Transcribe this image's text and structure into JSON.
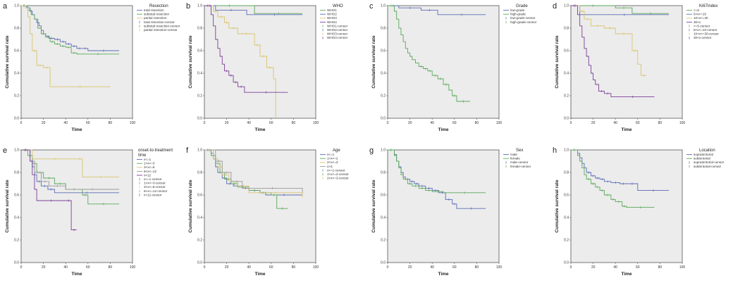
{
  "figure": {
    "description_free": true
  },
  "colors": {
    "blue": "#5b6bb5",
    "green": "#5aa85a",
    "tan": "#d9c36e",
    "purple": "#7b3f98",
    "gray": "#999999",
    "background": "#ececec"
  },
  "chart_data": [
    {
      "letter": "a",
      "type": "line",
      "title": "",
      "xlabel": "Time",
      "ylabel": "Cumulative survival rate",
      "xlim": [
        0,
        100
      ],
      "ylim": [
        0,
        1
      ],
      "xticks": [
        "0",
        "20",
        "40",
        "60",
        "80",
        "100"
      ],
      "yticks": [
        "0.0",
        "0.2",
        "0.4",
        "0.6",
        "0.8",
        "1.0"
      ],
      "legend_title": "Resection",
      "legend": [
        "total resection",
        "subtotal resection",
        "partial resection",
        "total resection-censor",
        "subtotal resection-censor",
        "partial resection-censor"
      ],
      "series": [
        {
          "name": "total resection",
          "color": "blue",
          "x": [
            0,
            5,
            8,
            10,
            12,
            14,
            16,
            18,
            20,
            22,
            25,
            30,
            35,
            40,
            45,
            50,
            55,
            60,
            88
          ],
          "y": [
            1,
            0.98,
            0.95,
            0.92,
            0.88,
            0.85,
            0.82,
            0.78,
            0.75,
            0.73,
            0.71,
            0.7,
            0.68,
            0.66,
            0.64,
            0.62,
            0.62,
            0.6,
            0.6
          ]
        },
        {
          "name": "subtotal resection",
          "color": "green",
          "x": [
            0,
            6,
            9,
            12,
            15,
            18,
            22,
            26,
            30,
            35,
            40,
            45,
            50,
            88
          ],
          "y": [
            1,
            0.96,
            0.92,
            0.88,
            0.8,
            0.75,
            0.72,
            0.68,
            0.66,
            0.64,
            0.63,
            0.58,
            0.57,
            0.57
          ]
        },
        {
          "name": "partial resection",
          "color": "tan",
          "x": [
            0,
            4,
            6,
            8,
            10,
            14,
            20,
            26,
            80
          ],
          "y": [
            1,
            0.98,
            0.9,
            0.75,
            0.6,
            0.47,
            0.45,
            0.28,
            0.28
          ]
        }
      ]
    },
    {
      "letter": "b",
      "type": "line",
      "title": "",
      "xlabel": "Time",
      "ylabel": "Cumulative survival rate",
      "xlim": [
        0,
        100
      ],
      "ylim": [
        0,
        1
      ],
      "xticks": [
        "0",
        "20",
        "40",
        "60",
        "80",
        "100"
      ],
      "yticks": [
        "0.0",
        "0.2",
        "0.4",
        "0.6",
        "0.8",
        "1.0"
      ],
      "legend_title": "WHO",
      "legend": [
        "WHO1",
        "WHO2",
        "WHO3",
        "WHO4",
        "WHO1-censor",
        "WHO2-censor",
        "WHO3-censor",
        "WHO4-censor"
      ],
      "series": [
        {
          "name": "WHO1",
          "color": "green",
          "x": [
            0,
            45,
            88
          ],
          "y": [
            1,
            0.93,
            0.93
          ]
        },
        {
          "name": "WHO2",
          "color": "blue",
          "x": [
            0,
            10,
            38,
            88
          ],
          "y": [
            1,
            0.96,
            0.92,
            0.92
          ]
        },
        {
          "name": "WHO3",
          "color": "tan",
          "x": [
            0,
            8,
            12,
            18,
            22,
            30,
            45,
            50,
            56,
            62,
            64
          ],
          "y": [
            1,
            0.95,
            0.9,
            0.85,
            0.8,
            0.75,
            0.65,
            0.55,
            0.45,
            0.35,
            0.0
          ]
        },
        {
          "name": "WHO4",
          "color": "purple",
          "x": [
            0,
            6,
            8,
            10,
            12,
            14,
            16,
            18,
            22,
            26,
            30,
            36,
            75
          ],
          "y": [
            1,
            0.92,
            0.82,
            0.7,
            0.62,
            0.55,
            0.48,
            0.42,
            0.38,
            0.32,
            0.28,
            0.23,
            0.23
          ]
        }
      ]
    },
    {
      "letter": "c",
      "type": "line",
      "title": "",
      "xlabel": "Time",
      "ylabel": "Cumulative survival rate",
      "xlim": [
        0,
        100
      ],
      "ylim": [
        0,
        1
      ],
      "xticks": [
        "0",
        "20",
        "40",
        "60",
        "80",
        "100"
      ],
      "yticks": [
        "0.0",
        "0.2",
        "0.4",
        "0.6",
        "0.8",
        "1.0"
      ],
      "legend_title": "Grade",
      "legend": [
        "low-grade",
        "high-grade",
        "low-grade-censor",
        "high-grade-censor"
      ],
      "series": [
        {
          "name": "low-grade",
          "color": "blue",
          "x": [
            0,
            10,
            30,
            45,
            88
          ],
          "y": [
            1,
            0.98,
            0.96,
            0.92,
            0.92
          ]
        },
        {
          "name": "high-grade",
          "color": "green",
          "x": [
            0,
            6,
            8,
            10,
            12,
            14,
            16,
            18,
            20,
            22,
            25,
            28,
            32,
            36,
            40,
            45,
            50,
            55,
            58,
            62,
            74
          ],
          "y": [
            1,
            0.95,
            0.88,
            0.8,
            0.74,
            0.68,
            0.62,
            0.58,
            0.55,
            0.52,
            0.49,
            0.46,
            0.44,
            0.42,
            0.38,
            0.35,
            0.3,
            0.25,
            0.2,
            0.15,
            0.15
          ]
        }
      ]
    },
    {
      "letter": "d",
      "type": "line",
      "title": "",
      "xlabel": "Time",
      "ylabel": "Cumulative survival rate",
      "xlim": [
        0,
        100
      ],
      "ylim": [
        0,
        1
      ],
      "xticks": [
        "0",
        "20",
        "40",
        "60",
        "80",
        "100"
      ],
      "yticks": [
        "0.0",
        "0.2",
        "0.4",
        "0.6",
        "0.8",
        "1.0"
      ],
      "legend_title": "Ki67index",
      "legend": [
        "<=5",
        "5<x<=10",
        "10<x<=30",
        "30<x",
        "<=5-censor",
        "5<x<=10-censor",
        "10<x<=30-censor",
        "30<x-censor"
      ],
      "series": [
        {
          "name": "<=5",
          "color": "green",
          "x": [
            0,
            40,
            55,
            88
          ],
          "y": [
            1,
            0.98,
            0.93,
            0.93
          ]
        },
        {
          "name": "5<x<=10",
          "color": "blue",
          "x": [
            0,
            8,
            88
          ],
          "y": [
            1,
            0.92,
            0.92
          ]
        },
        {
          "name": "10<x<=30",
          "color": "tan",
          "x": [
            0,
            8,
            12,
            18,
            30,
            40,
            55,
            60,
            63,
            68
          ],
          "y": [
            1,
            0.95,
            0.88,
            0.82,
            0.8,
            0.75,
            0.6,
            0.48,
            0.38,
            0.38
          ]
        },
        {
          "name": "30<x",
          "color": "purple",
          "x": [
            0,
            6,
            8,
            10,
            12,
            14,
            16,
            18,
            20,
            22,
            25,
            30,
            36,
            75
          ],
          "y": [
            1,
            0.92,
            0.82,
            0.72,
            0.62,
            0.55,
            0.47,
            0.4,
            0.34,
            0.3,
            0.24,
            0.22,
            0.19,
            0.19
          ]
        }
      ]
    },
    {
      "letter": "e",
      "type": "line",
      "title": "",
      "xlabel": "Time",
      "ylabel": "Cumulative survival rate",
      "xlim": [
        0,
        100
      ],
      "ylim": [
        0,
        1
      ],
      "xticks": [
        "0",
        "20",
        "40",
        "60",
        "80",
        "100"
      ],
      "yticks": [
        "0.0",
        "0.2",
        "0.4",
        "0.6",
        "0.8",
        "1.0"
      ],
      "legend_title": "onset-to-treatment time",
      "legend": [
        "x<=1",
        "1<x<=3",
        "3<x<=6",
        "6<x<=12",
        "x>12",
        "x<=1-censor",
        "1<x<=3-censor",
        "3<x<=6-censor",
        "6<x<=12-censor",
        "x>12-censor"
      ],
      "series": [
        {
          "name": "x<=1",
          "color": "blue",
          "x": [
            0,
            8,
            10,
            12,
            14,
            18,
            24,
            30,
            88
          ],
          "y": [
            1,
            0.95,
            0.85,
            0.78,
            0.72,
            0.68,
            0.65,
            0.62,
            0.62
          ]
        },
        {
          "name": "1<x<=3",
          "color": "green",
          "x": [
            0,
            6,
            10,
            14,
            20,
            30,
            40,
            55,
            60,
            88
          ],
          "y": [
            1,
            0.95,
            0.88,
            0.8,
            0.75,
            0.7,
            0.65,
            0.6,
            0.52,
            0.52
          ]
        },
        {
          "name": "3<x<=6",
          "color": "tan",
          "x": [
            0,
            10,
            50,
            55,
            88
          ],
          "y": [
            1,
            0.92,
            0.92,
            0.76,
            0.76
          ]
        },
        {
          "name": "6<x<=12",
          "color": "gray",
          "x": [
            0,
            8,
            12,
            18,
            25,
            40,
            88
          ],
          "y": [
            1,
            0.9,
            0.8,
            0.72,
            0.68,
            0.65,
            0.65
          ]
        },
        {
          "name": "x>12",
          "color": "purple",
          "x": [
            0,
            8,
            10,
            12,
            14,
            40,
            45,
            50
          ],
          "y": [
            1,
            0.9,
            0.78,
            0.65,
            0.55,
            0.55,
            0.29,
            0.29
          ]
        }
      ]
    },
    {
      "letter": "f",
      "type": "line",
      "title": "",
      "xlabel": "Time",
      "ylabel": "Cumulative survival rate",
      "xlim": [
        0,
        100
      ],
      "ylim": [
        0,
        1
      ],
      "xticks": [
        "0",
        "20",
        "40",
        "60",
        "80",
        "100"
      ],
      "yticks": [
        "0.0",
        "0.2",
        "0.4",
        "0.6",
        "0.8",
        "1.0"
      ],
      "legend_title": "Age",
      "legend": [
        "x<=1",
        "1<x<=2",
        "2<x<=3",
        "x>3",
        "x<=1-censor",
        "1<x<=2-censor",
        "2<x<=3-censor"
      ],
      "series": [
        {
          "name": "x<=1",
          "color": "blue",
          "x": [
            0,
            6,
            8,
            10,
            12,
            16,
            20,
            26,
            34,
            40,
            50,
            55,
            88
          ],
          "y": [
            1,
            0.97,
            0.92,
            0.85,
            0.8,
            0.75,
            0.7,
            0.68,
            0.66,
            0.64,
            0.62,
            0.6,
            0.6
          ]
        },
        {
          "name": "1<x<=2",
          "color": "green",
          "x": [
            0,
            6,
            10,
            14,
            18,
            24,
            30,
            40,
            50,
            60,
            65,
            75
          ],
          "y": [
            1,
            0.95,
            0.88,
            0.8,
            0.74,
            0.7,
            0.67,
            0.64,
            0.62,
            0.6,
            0.48,
            0.48
          ]
        },
        {
          "name": "2<x<=3",
          "color": "tan",
          "x": [
            0,
            8,
            12,
            16,
            22,
            30,
            40,
            88
          ],
          "y": [
            1,
            0.92,
            0.85,
            0.78,
            0.72,
            0.68,
            0.62,
            0.58
          ]
        },
        {
          "name": "x>3",
          "color": "gray",
          "x": [
            0,
            10,
            16,
            24,
            34,
            88
          ],
          "y": [
            1,
            0.9,
            0.8,
            0.72,
            0.66,
            0.62
          ]
        }
      ]
    },
    {
      "letter": "g",
      "type": "line",
      "title": "",
      "xlabel": "Time",
      "ylabel": "Cumulative survival rate",
      "xlim": [
        0,
        100
      ],
      "ylim": [
        0,
        1
      ],
      "xticks": [
        "0",
        "20",
        "40",
        "60",
        "80",
        "100"
      ],
      "yticks": [
        "0.0",
        "0.2",
        "0.4",
        "0.6",
        "0.8",
        "1.0"
      ],
      "legend_title": "Sex",
      "legend": [
        "male",
        "female",
        "male-censor",
        "female-censor"
      ],
      "series": [
        {
          "name": "male",
          "color": "blue",
          "x": [
            0,
            6,
            8,
            10,
            12,
            14,
            16,
            20,
            24,
            28,
            34,
            40,
            46,
            52,
            58,
            62,
            88
          ],
          "y": [
            1,
            0.96,
            0.9,
            0.85,
            0.8,
            0.76,
            0.74,
            0.72,
            0.7,
            0.68,
            0.66,
            0.64,
            0.62,
            0.56,
            0.52,
            0.48,
            0.48
          ]
        },
        {
          "name": "female",
          "color": "green",
          "x": [
            0,
            6,
            8,
            10,
            12,
            14,
            18,
            22,
            28,
            34,
            40,
            50,
            88
          ],
          "y": [
            1,
            0.95,
            0.9,
            0.84,
            0.78,
            0.74,
            0.7,
            0.68,
            0.66,
            0.64,
            0.63,
            0.62,
            0.62
          ]
        }
      ]
    },
    {
      "letter": "h",
      "type": "line",
      "title": "",
      "xlabel": "Time",
      "ylabel": "Cumulative survival rate",
      "xlim": [
        0,
        100
      ],
      "ylim": [
        0,
        1
      ],
      "xticks": [
        "0",
        "20",
        "40",
        "60",
        "80",
        "100"
      ],
      "yticks": [
        "0.0",
        "0.2",
        "0.4",
        "0.6",
        "0.8",
        "1.0"
      ],
      "legend_title": "Location",
      "legend": [
        "supratentorial",
        "subtentorial",
        "supratentorial-censor",
        "subtentorial-censor"
      ],
      "series": [
        {
          "name": "supratentorial",
          "color": "blue",
          "x": [
            0,
            6,
            8,
            10,
            12,
            14,
            18,
            22,
            26,
            30,
            36,
            44,
            50,
            60,
            88
          ],
          "y": [
            1,
            0.97,
            0.93,
            0.88,
            0.84,
            0.8,
            0.77,
            0.75,
            0.74,
            0.72,
            0.71,
            0.7,
            0.7,
            0.64,
            0.64
          ]
        },
        {
          "name": "subtentorial",
          "color": "green",
          "x": [
            0,
            6,
            8,
            10,
            12,
            14,
            18,
            22,
            26,
            30,
            36,
            40,
            46,
            50,
            75
          ],
          "y": [
            1,
            0.95,
            0.9,
            0.84,
            0.78,
            0.74,
            0.7,
            0.67,
            0.64,
            0.6,
            0.56,
            0.54,
            0.5,
            0.49,
            0.49
          ]
        }
      ]
    }
  ]
}
